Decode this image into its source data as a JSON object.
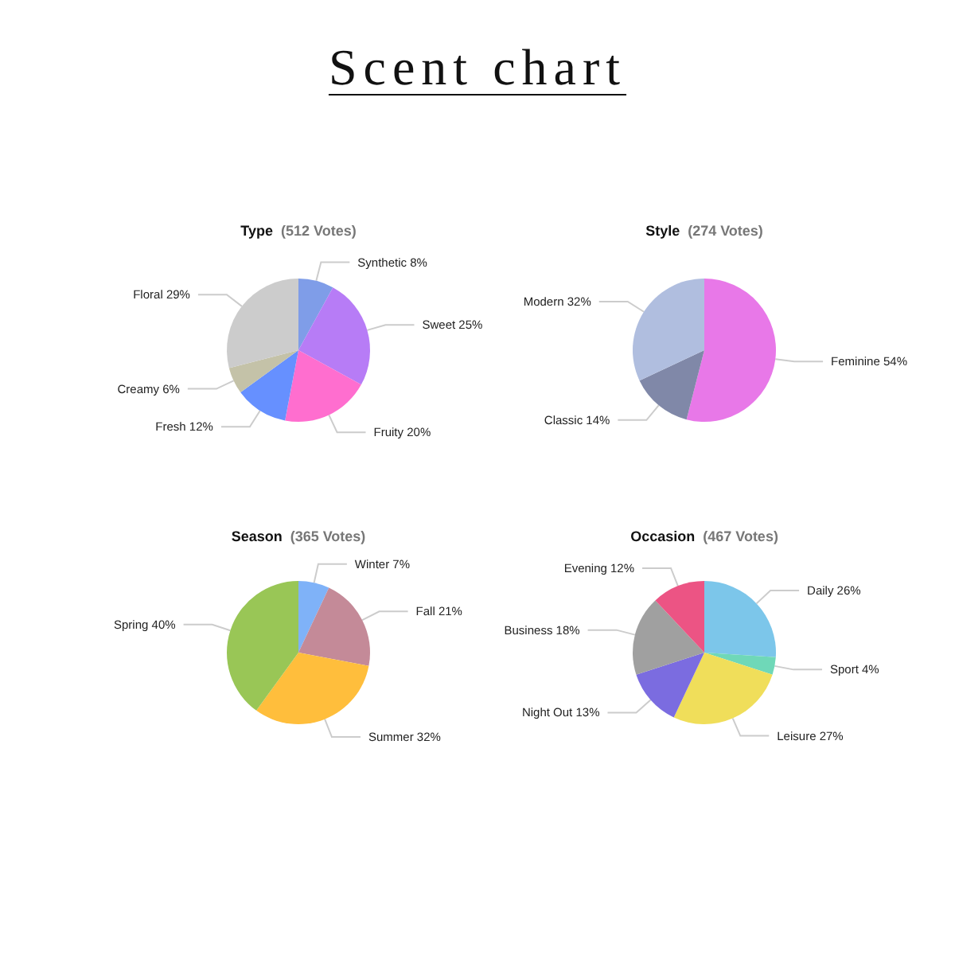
{
  "chart_data": [
    {
      "type": "other",
      "title": "Scent chart"
    },
    {
      "type": "pie",
      "title": "Type",
      "subtitle": "(512 Votes)",
      "categories": [
        "Synthetic",
        "Sweet",
        "Fruity",
        "Fresh",
        "Creamy",
        "Floral"
      ],
      "values": [
        8,
        25,
        20,
        12,
        6,
        29
      ],
      "value_labels": [
        "8%",
        "25%",
        "20%",
        "12%",
        "6%",
        "29%"
      ],
      "colors": [
        "#7f9de8",
        "#b77cf6",
        "#ff6ecf",
        "#6690ff",
        "#c4c2a8",
        "#cccccc"
      ]
    },
    {
      "type": "pie",
      "title": "Style",
      "subtitle": "(274 Votes)",
      "categories": [
        "Feminine",
        "Classic",
        "Modern"
      ],
      "values": [
        54,
        14,
        32
      ],
      "value_labels": [
        "54%",
        "14%",
        "32%"
      ],
      "colors": [
        "#e878e8",
        "#8088a8",
        "#b0bedf"
      ]
    },
    {
      "type": "pie",
      "title": "Season",
      "subtitle": "(365 Votes)",
      "categories": [
        "Winter",
        "Fall",
        "Summer",
        "Spring"
      ],
      "values": [
        7,
        21,
        32,
        40
      ],
      "value_labels": [
        "7%",
        "21%",
        "32%",
        "40%"
      ],
      "colors": [
        "#7fb2f8",
        "#c48a98",
        "#ffbe3c",
        "#99c656"
      ]
    },
    {
      "type": "pie",
      "title": "Occasion",
      "subtitle": "(467 Votes)",
      "categories": [
        "Daily",
        "Sport",
        "Leisure",
        "Night Out",
        "Business",
        "Evening"
      ],
      "values": [
        26,
        4,
        27,
        13,
        18,
        12
      ],
      "value_labels": [
        "26%",
        "4%",
        "27%",
        "13%",
        "18%",
        "12%"
      ],
      "colors": [
        "#7cc6ea",
        "#6fd8b8",
        "#f0de5a",
        "#7b6ce0",
        "#a0a0a0",
        "#ec5484"
      ]
    }
  ]
}
